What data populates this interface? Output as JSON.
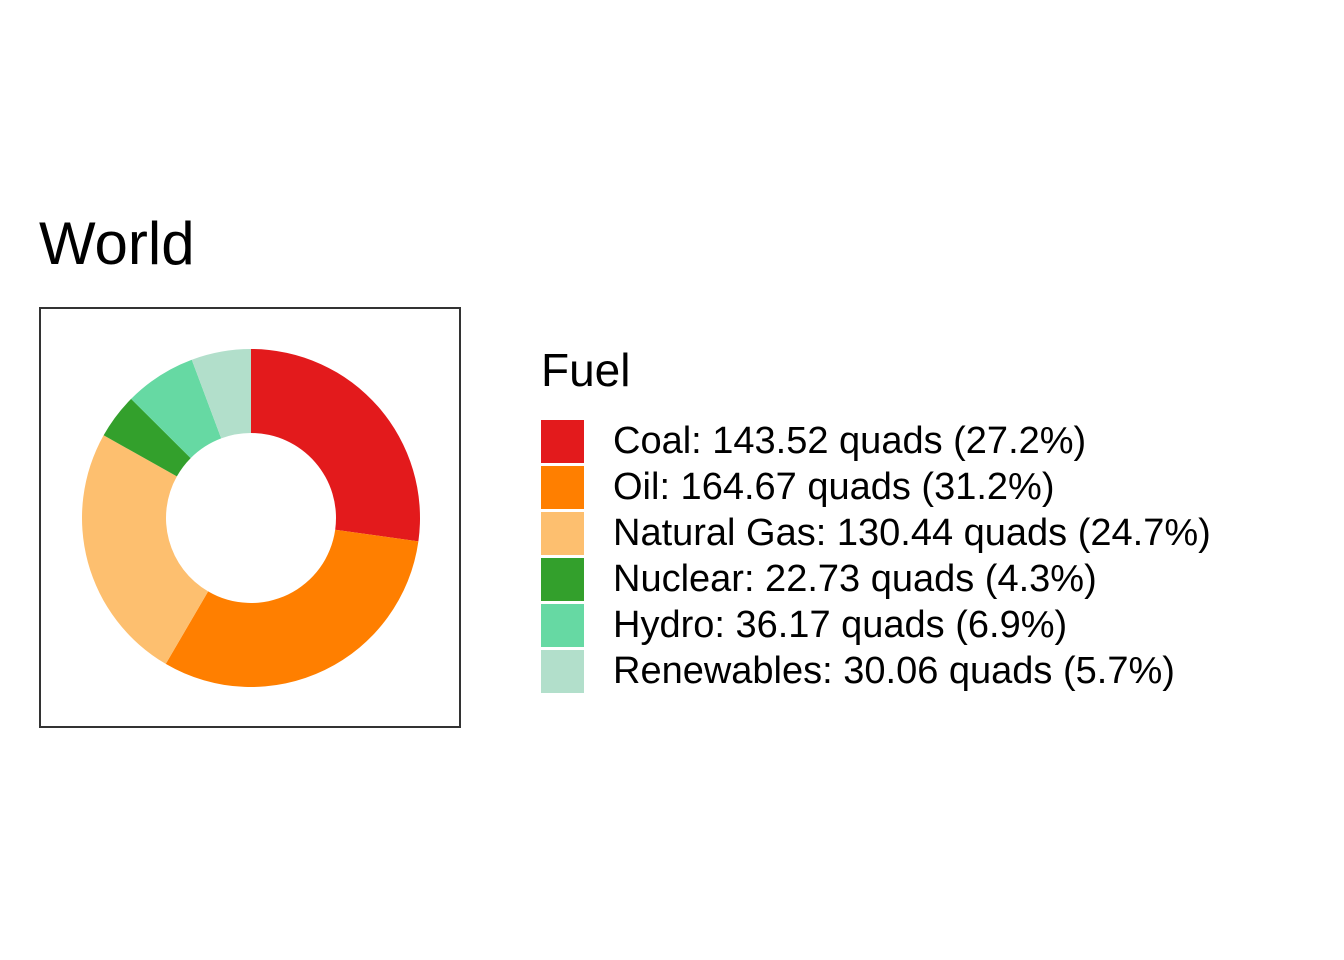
{
  "chart_data": {
    "type": "pie",
    "donut": true,
    "title": "World",
    "legend": {
      "title": "Fuel",
      "placement": "right"
    },
    "slices": [
      {
        "category": "Coal",
        "value": 143.52,
        "percent": 27.2,
        "color": "#e31a1c",
        "label": "Coal: 143.52 quads (27.2%)"
      },
      {
        "category": "Oil",
        "value": 164.67,
        "percent": 31.2,
        "color": "#ff7f00",
        "label": "Oil: 164.67 quads (31.2%)"
      },
      {
        "category": "Natural Gas",
        "value": 130.44,
        "percent": 24.7,
        "color": "#fdbf6f",
        "label": "Natural Gas: 130.44 quads (24.7%)"
      },
      {
        "category": "Nuclear",
        "value": 22.73,
        "percent": 4.3,
        "color": "#33a02c",
        "label": "Nuclear: 22.73 quads (4.3%)"
      },
      {
        "category": "Hydro",
        "value": 36.17,
        "percent": 6.9,
        "color": "#66d9a3",
        "label": "Hydro: 36.17 quads (6.9%)"
      },
      {
        "category": "Renewables",
        "value": 30.06,
        "percent": 5.7,
        "color": "#b2dfcb",
        "label": "Renewables: 30.06 quads (5.7%)"
      }
    ],
    "direction": "clockwise",
    "start": "top"
  }
}
